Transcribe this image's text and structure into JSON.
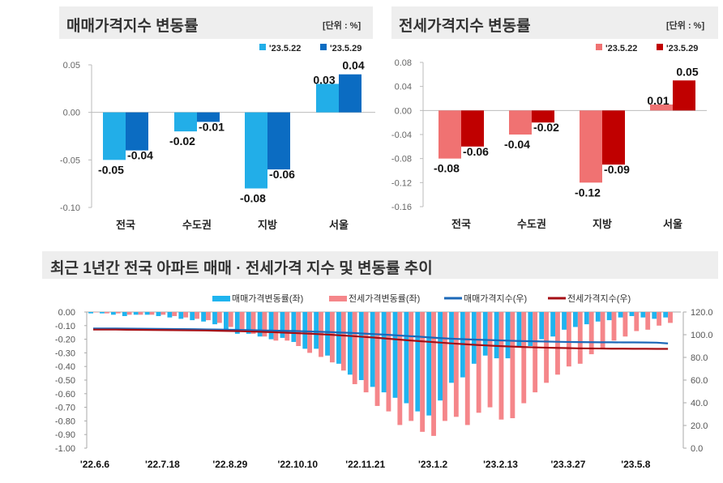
{
  "chart_data": [
    {
      "type": "bar",
      "title": "매매가격지수 변동률",
      "unit": "[단위 : %]",
      "categories": [
        "전국",
        "수도권",
        "지방",
        "서울"
      ],
      "series": [
        {
          "name": "'23.5.22",
          "values": [
            -0.05,
            -0.02,
            -0.08,
            0.03
          ],
          "color": "#22aee8"
        },
        {
          "name": "'23.5.29",
          "values": [
            -0.04,
            -0.01,
            -0.06,
            0.04
          ],
          "color": "#0b6cc2"
        }
      ],
      "yticks": [
        "0.05",
        "0.00",
        "-0.05",
        "-0.10"
      ],
      "ylim": [
        -0.1,
        0.05
      ],
      "legend": "top-right"
    },
    {
      "type": "bar",
      "title": "전세가격지수 변동률",
      "unit": "[단위 : %]",
      "categories": [
        "전국",
        "수도권",
        "지방",
        "서울"
      ],
      "series": [
        {
          "name": "'23.5.22",
          "values": [
            -0.08,
            -0.04,
            -0.12,
            0.01
          ],
          "color": "#f07272"
        },
        {
          "name": "'23.5.29",
          "values": [
            -0.06,
            -0.02,
            -0.09,
            0.05
          ],
          "color": "#c00000"
        }
      ],
      "yticks": [
        "0.08",
        "0.04",
        "0.00",
        "-0.04",
        "-0.08",
        "-0.12",
        "-0.16"
      ],
      "ylim": [
        -0.16,
        0.08
      ],
      "legend": "top-right"
    },
    {
      "type": "bar+line",
      "title": "최근 1년간 전국 아파트 매매 · 전세가격 지수 및 변동률 추이",
      "xticks": [
        "'22.6.6",
        "'22.7.18",
        "'22.8.29",
        "'22.10.10",
        "'22.11.21",
        "'23.1.2",
        "'23.2.13",
        "'23.3.27",
        "'23.5.8"
      ],
      "yticks_left": [
        "0.00",
        "-0.10",
        "-0.20",
        "-0.30",
        "-0.40",
        "-0.50",
        "-0.60",
        "-0.70",
        "-0.80",
        "-0.90",
        "-1.00"
      ],
      "yticks_right": [
        "120.0",
        "100.0",
        "80.0",
        "60.0",
        "40.0",
        "20.0",
        "0.0"
      ],
      "ylim_left": [
        -1.0,
        0.0
      ],
      "ylim_right": [
        0,
        120
      ],
      "legend": "top",
      "series": [
        {
          "name": "매매가격변동률(좌)",
          "kind": "bar",
          "color": "#1fb4ef",
          "values": [
            -0.01,
            -0.01,
            -0.02,
            -0.03,
            -0.02,
            -0.02,
            -0.03,
            -0.04,
            -0.05,
            -0.06,
            -0.07,
            -0.09,
            -0.14,
            -0.16,
            -0.16,
            -0.18,
            -0.2,
            -0.19,
            -0.22,
            -0.27,
            -0.27,
            -0.32,
            -0.38,
            -0.46,
            -0.5,
            -0.55,
            -0.59,
            -0.63,
            -0.67,
            -0.73,
            -0.76,
            -0.65,
            -0.52,
            -0.48,
            -0.38,
            -0.32,
            -0.34,
            -0.34,
            -0.25,
            -0.25,
            -0.2,
            -0.18,
            -0.13,
            -0.11,
            -0.09,
            -0.07,
            -0.06,
            -0.04,
            -0.03,
            -0.04,
            -0.05,
            -0.04
          ]
        },
        {
          "name": "전세가격변동률(좌)",
          "kind": "bar",
          "color": "#f5868a",
          "values": [
            0.0,
            -0.01,
            -0.01,
            -0.02,
            -0.02,
            -0.02,
            -0.02,
            -0.03,
            -0.04,
            -0.05,
            -0.06,
            -0.08,
            -0.11,
            -0.14,
            -0.16,
            -0.18,
            -0.21,
            -0.21,
            -0.25,
            -0.3,
            -0.33,
            -0.37,
            -0.43,
            -0.53,
            -0.59,
            -0.69,
            -0.73,
            -0.83,
            -0.8,
            -0.88,
            -0.91,
            -0.8,
            -0.77,
            -0.83,
            -0.74,
            -0.7,
            -0.79,
            -0.78,
            -0.67,
            -0.59,
            -0.52,
            -0.46,
            -0.4,
            -0.38,
            -0.31,
            -0.27,
            -0.21,
            -0.18,
            -0.14,
            -0.13,
            -0.1,
            -0.08
          ]
        },
        {
          "name": "매매가격지수(우)",
          "kind": "line",
          "color": "#1c68b8",
          "values": [
            105.5,
            105.5,
            105.5,
            105.4,
            105.3,
            105.2,
            105.1,
            105,
            104.9,
            104.8,
            104.7,
            104.6,
            104.4,
            104.2,
            104,
            103.8,
            103.6,
            103.4,
            103.2,
            102.9,
            102.6,
            102.3,
            101.9,
            101.5,
            101,
            100.5,
            100,
            99.4,
            98.8,
            98.2,
            97.5,
            96.9,
            96.4,
            96,
            95.6,
            95.3,
            95,
            94.7,
            94.4,
            94.2,
            94,
            93.8,
            93.6,
            93.5,
            93.4,
            93.3,
            93.3,
            93.2,
            93.2,
            93.1,
            93,
            92.3
          ]
        },
        {
          "name": "전세가격지수(우)",
          "kind": "line",
          "color": "#a50f15",
          "values": [
            104.5,
            104.5,
            104.5,
            104.4,
            104.3,
            104.2,
            104.1,
            104,
            103.9,
            103.8,
            103.7,
            103.5,
            103.3,
            103.1,
            102.8,
            102.5,
            102.2,
            101.8,
            101.4,
            101,
            100.5,
            100,
            99.4,
            98.8,
            98.1,
            97.4,
            96.6,
            95.8,
            95,
            94.3,
            93.6,
            92.9,
            92.2,
            91.6,
            91,
            90.5,
            90,
            89.6,
            89.2,
            88.9,
            88.6,
            88.4,
            88.2,
            88,
            87.9,
            87.8,
            87.7,
            87.7,
            87.6,
            87.6,
            87.5,
            87.5
          ]
        }
      ]
    }
  ]
}
